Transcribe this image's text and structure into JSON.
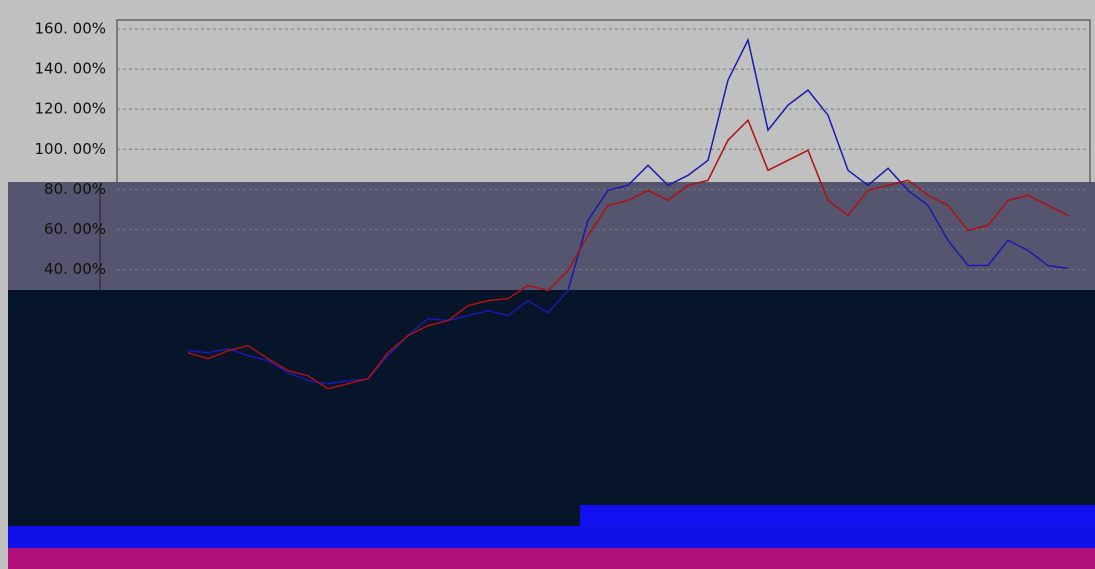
{
  "chart_data": {
    "type": "line",
    "categories": [
      null,
      null,
      null,
      null,
      null,
      null,
      null,
      null,
      null,
      null,
      null,
      null,
      null,
      null,
      null,
      null,
      null,
      null,
      null,
      null,
      null,
      null,
      null,
      null,
      null,
      null,
      null,
      null,
      null,
      null,
      null,
      null,
      null,
      null,
      null,
      null,
      null,
      null,
      null,
      null,
      null,
      null,
      null,
      null,
      null
    ],
    "series": [
      {
        "color": "#1a1ab0",
        "values": [
          -0.5,
          -1.5,
          0.5,
          -3,
          -5.5,
          -11.5,
          -15.5,
          -17,
          -15.5,
          -14.5,
          -3,
          7,
          15.5,
          14.5,
          17,
          19.5,
          17,
          24.5,
          18.5,
          29.5,
          64.5,
          79.5,
          82,
          92,
          82,
          87,
          94.5,
          134.5,
          154.5,
          109.5,
          122,
          129.5,
          117,
          89.5,
          82,
          90.5,
          79.5,
          72,
          54.5,
          42,
          42,
          54.5,
          49.5,
          42,
          40.5
        ]
      },
      {
        "color": "#b01010",
        "values": [
          -1.5,
          -4.5,
          -0.5,
          2,
          -4.5,
          -10.5,
          -13,
          -19.5,
          -17,
          -14.5,
          -1.5,
          7,
          12,
          14.5,
          22,
          24.5,
          25.5,
          32,
          29.5,
          39.5,
          57,
          72,
          74.5,
          79.5,
          74.5,
          82,
          84.5,
          104.5,
          114.5,
          89.5,
          94.5,
          99.5,
          74.5,
          67,
          79.5,
          82,
          84.5,
          77,
          72,
          59.5,
          62,
          74.5,
          77,
          72,
          67
        ]
      }
    ],
    "ylim": [
      -80,
      164.5
    ],
    "yticks": [
      {
        "value": 40,
        "label": "40. 00%"
      },
      {
        "value": 60,
        "label": "60. 00%"
      },
      {
        "value": 80,
        "label": "80. 00%"
      },
      {
        "value": 100,
        "label": "100. 00%"
      },
      {
        "value": 120,
        "label": "120. 00%"
      },
      {
        "value": 140,
        "label": "140. 00%"
      },
      {
        "value": 160,
        "label": "160. 00%"
      }
    ],
    "grid": true
  }
}
